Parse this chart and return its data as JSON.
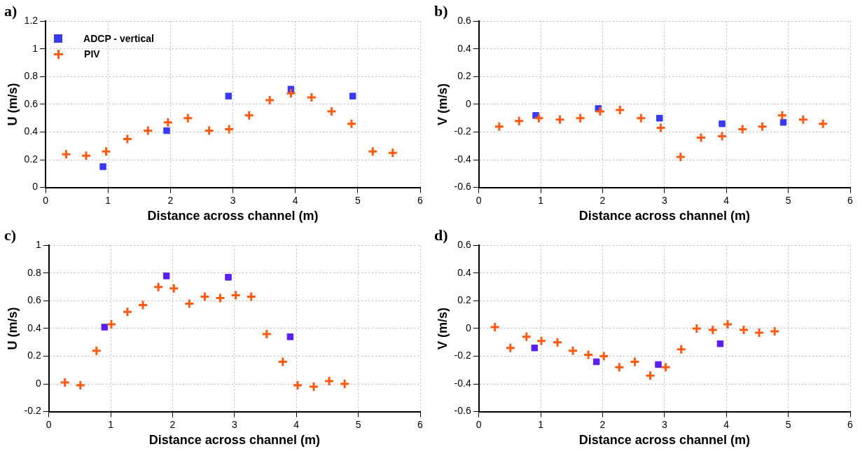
{
  "chart_data": [
    {
      "type": "scatter",
      "title": "a)",
      "xlabel": "Distance across channel (m)",
      "ylabel": "U (m/s)",
      "xlim": [
        0,
        6
      ],
      "xticks": [
        0,
        1,
        2,
        3,
        4,
        5,
        6
      ],
      "ylim": [
        0,
        1.2
      ],
      "yticks": [
        0,
        0.2,
        0.4,
        0.6,
        0.8,
        1,
        1.2
      ],
      "grid": true,
      "legend": "top left",
      "series": [
        {
          "name": "ADCP - vertical",
          "color": "#3a3af5",
          "marker": "square",
          "x": [
            0.92,
            1.94,
            2.93,
            3.93,
            4.92
          ],
          "values": [
            0.15,
            0.41,
            0.66,
            0.71,
            0.66
          ]
        },
        {
          "name": "PIV",
          "color": "#ff5a14",
          "marker": "cross",
          "x": [
            0.33,
            0.65,
            0.97,
            1.31,
            1.64,
            1.96,
            2.28,
            2.62,
            2.94,
            3.26,
            3.59,
            3.93,
            4.26,
            4.58,
            4.9,
            5.24,
            5.56
          ],
          "values": [
            0.24,
            0.23,
            0.26,
            0.35,
            0.41,
            0.47,
            0.5,
            0.41,
            0.42,
            0.52,
            0.63,
            0.68,
            0.65,
            0.55,
            0.46,
            0.26,
            0.25
          ]
        }
      ]
    },
    {
      "type": "scatter",
      "title": "b)",
      "xlabel": "Distance across channel (m)",
      "ylabel": "V (m/s)",
      "xlim": [
        0,
        6
      ],
      "xticks": [
        0,
        1,
        2,
        3,
        4,
        5,
        6
      ],
      "ylim": [
        -0.6,
        0.6
      ],
      "yticks": [
        -0.6,
        -0.4,
        -0.2,
        0,
        0.2,
        0.4,
        0.6
      ],
      "grid": true,
      "series": [
        {
          "color": "#3a3af5",
          "marker": "square",
          "x": [
            0.92,
            1.93,
            2.92,
            3.93,
            4.92
          ],
          "values": [
            -0.08,
            -0.03,
            -0.1,
            -0.14,
            -0.13
          ]
        },
        {
          "color": "#ff5a14",
          "marker": "cross",
          "x": [
            0.33,
            0.65,
            0.97,
            1.31,
            1.64,
            1.96,
            2.28,
            2.62,
            2.94,
            3.26,
            3.59,
            3.93,
            4.26,
            4.58,
            4.9,
            5.24,
            5.56
          ],
          "values": [
            -0.16,
            -0.12,
            -0.1,
            -0.11,
            -0.1,
            -0.05,
            -0.04,
            -0.1,
            -0.17,
            -0.38,
            -0.24,
            -0.23,
            -0.18,
            -0.16,
            -0.08,
            -0.11,
            -0.14
          ]
        }
      ]
    },
    {
      "type": "scatter",
      "title": "c)",
      "xlabel": "Distance across channel (m)",
      "ylabel": "U (m/s)",
      "xlim": [
        0,
        6
      ],
      "xticks": [
        0,
        1,
        2,
        3,
        4,
        5,
        6
      ],
      "ylim": [
        -0.2,
        1
      ],
      "yticks": [
        -0.2,
        0,
        0.2,
        0.4,
        0.6,
        0.8,
        1
      ],
      "grid": true,
      "series": [
        {
          "color": "#5a1ff0",
          "marker": "square",
          "x": [
            0.9,
            1.9,
            2.9,
            3.9
          ],
          "values": [
            0.41,
            0.78,
            0.77,
            0.34
          ]
        },
        {
          "color": "#ff5a14",
          "marker": "cross",
          "x": [
            0.26,
            0.51,
            0.77,
            1.01,
            1.27,
            1.52,
            1.77,
            2.02,
            2.27,
            2.52,
            2.77,
            3.02,
            3.27,
            3.52,
            3.78,
            4.02,
            4.28,
            4.53,
            4.78
          ],
          "values": [
            0.01,
            -0.01,
            0.24,
            0.43,
            0.52,
            0.57,
            0.7,
            0.69,
            0.58,
            0.63,
            0.62,
            0.64,
            0.63,
            0.36,
            0.16,
            -0.01,
            -0.02,
            0.02,
            0.0
          ]
        }
      ]
    },
    {
      "type": "scatter",
      "title": "d)",
      "xlabel": "Distance across channel (m)",
      "ylabel": "V (m/s)",
      "xlim": [
        0,
        6
      ],
      "xticks": [
        0,
        1,
        2,
        3,
        4,
        5,
        6
      ],
      "ylim": [
        -0.6,
        0.6
      ],
      "yticks": [
        -0.6,
        -0.4,
        -0.2,
        0,
        0.2,
        0.4,
        0.6
      ],
      "grid": true,
      "series": [
        {
          "color": "#5a1ff0",
          "marker": "square",
          "x": [
            0.9,
            1.9,
            2.9,
            3.9
          ],
          "values": [
            -0.14,
            -0.24,
            -0.26,
            -0.11
          ]
        },
        {
          "color": "#ff5a14",
          "marker": "cross",
          "x": [
            0.26,
            0.51,
            0.77,
            1.01,
            1.27,
            1.52,
            1.77,
            2.02,
            2.27,
            2.52,
            2.77,
            3.02,
            3.27,
            3.52,
            3.78,
            4.02,
            4.28,
            4.53,
            4.78
          ],
          "values": [
            0.01,
            -0.14,
            -0.06,
            -0.09,
            -0.1,
            -0.16,
            -0.19,
            -0.2,
            -0.28,
            -0.24,
            -0.34,
            -0.28,
            -0.15,
            0.0,
            -0.01,
            0.03,
            -0.01,
            -0.03,
            -0.02
          ]
        }
      ]
    }
  ]
}
